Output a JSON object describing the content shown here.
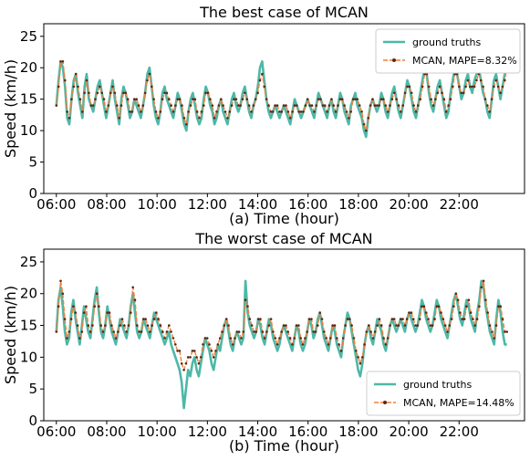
{
  "colors": {
    "ground_truth": "#4db8a7",
    "prediction": "#f07f3c",
    "marker_edge": "#5a2a1a"
  },
  "chart_data": [
    {
      "type": "line",
      "title": "The best case of MCAN",
      "xlabel": "(a) Time (hour)",
      "ylabel": "Speed (km/h)",
      "x_unit": "hour",
      "xlim": [
        5.5,
        24.6
      ],
      "ylim": [
        0,
        27
      ],
      "xticks": [
        "06:00",
        "08:00",
        "10:00",
        "12:00",
        "14:00",
        "16:00",
        "18:00",
        "20:00",
        "22:00"
      ],
      "yticks": [
        "0",
        "5",
        "10",
        "15",
        "20",
        "25"
      ],
      "legend_location": "upper-right",
      "series": [
        {
          "name": "ground truths",
          "values": [
            14,
            18,
            21,
            20,
            17,
            12,
            11,
            15,
            18,
            19,
            16,
            14,
            12,
            17,
            19,
            15,
            14,
            13,
            15,
            17,
            18,
            16,
            14,
            12,
            14,
            16,
            18,
            15,
            13,
            11,
            15,
            17,
            16,
            14,
            12,
            13,
            15,
            14,
            13,
            12,
            14,
            16,
            19,
            20,
            17,
            14,
            12,
            11,
            13,
            16,
            17,
            15,
            14,
            13,
            12,
            14,
            16,
            15,
            13,
            11,
            10,
            13,
            15,
            16,
            14,
            12,
            11,
            12,
            15,
            17,
            16,
            14,
            13,
            11,
            12,
            14,
            15,
            13,
            12,
            11,
            13,
            15,
            16,
            14,
            13,
            14,
            16,
            17,
            15,
            13,
            12,
            14,
            15,
            17,
            20,
            21,
            18,
            15,
            13,
            12,
            13,
            14,
            13,
            12,
            13,
            14,
            13,
            12,
            11,
            13,
            15,
            14,
            13,
            12,
            13,
            14,
            15,
            14,
            13,
            12,
            14,
            16,
            15,
            14,
            13,
            12,
            14,
            15,
            13,
            12,
            14,
            16,
            15,
            13,
            12,
            11,
            14,
            15,
            16,
            14,
            13,
            12,
            10,
            9,
            12,
            14,
            15,
            14,
            13,
            14,
            16,
            15,
            13,
            12,
            14,
            16,
            17,
            15,
            13,
            12,
            14,
            16,
            18,
            17,
            15,
            13,
            12,
            14,
            16,
            18,
            20,
            19,
            16,
            14,
            13,
            15,
            17,
            18,
            16,
            14,
            12,
            13,
            16,
            18,
            20,
            19,
            17,
            15,
            16,
            18,
            19,
            17,
            16,
            18,
            19,
            20,
            18,
            16,
            15,
            13,
            12,
            15,
            18,
            19,
            17,
            15,
            17,
            19,
            20
          ],
          "color": "#4db8a7"
        },
        {
          "name": "MCAN, MAPE=8.32%",
          "values": [
            14,
            17,
            21,
            21,
            18,
            13,
            12,
            15,
            17,
            19,
            17,
            15,
            13,
            16,
            18,
            16,
            14,
            14,
            15,
            16,
            17,
            16,
            15,
            13,
            14,
            16,
            17,
            16,
            14,
            12,
            14,
            16,
            16,
            15,
            13,
            13,
            15,
            15,
            14,
            13,
            14,
            16,
            18,
            19,
            17,
            15,
            13,
            12,
            13,
            15,
            16,
            16,
            15,
            14,
            13,
            14,
            15,
            15,
            14,
            12,
            11,
            13,
            14,
            15,
            15,
            13,
            12,
            13,
            14,
            16,
            16,
            15,
            14,
            12,
            13,
            14,
            15,
            14,
            13,
            12,
            13,
            14,
            15,
            15,
            14,
            14,
            15,
            16,
            15,
            14,
            13,
            14,
            15,
            16,
            18,
            19,
            17,
            15,
            14,
            13,
            13,
            14,
            14,
            13,
            13,
            14,
            14,
            13,
            12,
            13,
            14,
            14,
            13,
            13,
            13,
            14,
            15,
            14,
            14,
            13,
            14,
            15,
            15,
            14,
            14,
            13,
            14,
            15,
            14,
            13,
            14,
            15,
            15,
            14,
            13,
            12,
            13,
            15,
            15,
            15,
            14,
            13,
            11,
            10,
            12,
            14,
            15,
            14,
            14,
            14,
            15,
            15,
            14,
            13,
            14,
            15,
            16,
            15,
            14,
            13,
            14,
            16,
            17,
            17,
            16,
            14,
            13,
            14,
            15,
            17,
            19,
            19,
            17,
            15,
            14,
            15,
            16,
            17,
            16,
            15,
            13,
            14,
            15,
            17,
            19,
            19,
            17,
            16,
            16,
            17,
            18,
            17,
            17,
            17,
            18,
            19,
            18,
            17,
            15,
            14,
            13,
            15,
            17,
            18,
            17,
            16,
            17,
            18,
            20
          ],
          "color": "#f07f3c"
        }
      ]
    },
    {
      "type": "line",
      "title": "The worst case of MCAN",
      "xlabel": "(b) Time (hour)",
      "ylabel": "Speed (km/h)",
      "x_unit": "hour",
      "xlim": [
        5.5,
        24.6
      ],
      "ylim": [
        0,
        27
      ],
      "xticks": [
        "06:00",
        "08:00",
        "10:00",
        "12:00",
        "14:00",
        "16:00",
        "18:00",
        "20:00",
        "22:00"
      ],
      "yticks": [
        "0",
        "5",
        "10",
        "15",
        "20",
        "25"
      ],
      "legend_location": "lower-right",
      "series": [
        {
          "name": "ground truths",
          "values": [
            14,
            19,
            21,
            18,
            14,
            12,
            13,
            17,
            19,
            16,
            14,
            12,
            15,
            18,
            16,
            14,
            13,
            16,
            19,
            21,
            17,
            14,
            13,
            15,
            18,
            16,
            14,
            13,
            12,
            14,
            16,
            15,
            14,
            13,
            15,
            18,
            20,
            17,
            14,
            13,
            14,
            16,
            15,
            14,
            13,
            15,
            17,
            16,
            15,
            14,
            13,
            12,
            13,
            14,
            12,
            11,
            10,
            9,
            8,
            6,
            2,
            5,
            8,
            7,
            9,
            10,
            8,
            7,
            9,
            11,
            13,
            12,
            11,
            9,
            8,
            10,
            12,
            11,
            13,
            15,
            16,
            14,
            12,
            11,
            13,
            14,
            13,
            12,
            13,
            22,
            17,
            15,
            14,
            13,
            14,
            16,
            15,
            13,
            12,
            14,
            16,
            15,
            13,
            12,
            11,
            12,
            14,
            15,
            14,
            13,
            12,
            11,
            13,
            15,
            14,
            12,
            11,
            12,
            14,
            16,
            15,
            13,
            14,
            16,
            17,
            15,
            13,
            12,
            11,
            13,
            15,
            14,
            12,
            11,
            10,
            13,
            15,
            17,
            16,
            14,
            12,
            10,
            8,
            7,
            9,
            12,
            14,
            15,
            13,
            12,
            14,
            16,
            15,
            14,
            12,
            11,
            13,
            15,
            16,
            15,
            14,
            15,
            16,
            15,
            14,
            16,
            17,
            16,
            15,
            14,
            15,
            17,
            19,
            18,
            16,
            15,
            14,
            15,
            17,
            19,
            18,
            16,
            15,
            14,
            13,
            15,
            17,
            19,
            20,
            18,
            16,
            15,
            17,
            19,
            18,
            16,
            15,
            14,
            17,
            19,
            22,
            21,
            18,
            16,
            14,
            13,
            12,
            16,
            19,
            17,
            14,
            12,
            12
          ],
          "color": "#4db8a7"
        },
        {
          "name": "MCAN, MAPE=14.48%",
          "values": [
            14,
            18,
            22,
            20,
            16,
            13,
            14,
            16,
            18,
            17,
            15,
            13,
            14,
            17,
            18,
            15,
            14,
            15,
            18,
            20,
            18,
            15,
            14,
            15,
            17,
            17,
            15,
            14,
            13,
            14,
            15,
            16,
            15,
            14,
            15,
            17,
            21,
            19,
            15,
            14,
            14,
            16,
            16,
            15,
            14,
            15,
            16,
            17,
            16,
            15,
            14,
            13,
            14,
            15,
            14,
            13,
            12,
            11,
            11,
            9,
            8,
            9,
            10,
            10,
            11,
            11,
            10,
            9,
            10,
            12,
            13,
            13,
            12,
            11,
            10,
            11,
            12,
            13,
            14,
            15,
            16,
            15,
            13,
            12,
            13,
            14,
            14,
            13,
            14,
            19,
            18,
            16,
            15,
            14,
            14,
            16,
            16,
            14,
            13,
            14,
            15,
            16,
            14,
            13,
            12,
            13,
            14,
            15,
            15,
            14,
            13,
            12,
            13,
            15,
            15,
            13,
            12,
            13,
            14,
            16,
            16,
            14,
            14,
            15,
            17,
            16,
            14,
            13,
            12,
            13,
            15,
            15,
            13,
            12,
            11,
            13,
            15,
            16,
            16,
            15,
            13,
            11,
            10,
            9,
            10,
            12,
            14,
            15,
            14,
            13,
            14,
            15,
            16,
            15,
            13,
            12,
            13,
            15,
            16,
            16,
            15,
            15,
            16,
            16,
            15,
            16,
            17,
            17,
            16,
            15,
            15,
            16,
            18,
            18,
            17,
            16,
            15,
            15,
            16,
            18,
            18,
            17,
            16,
            15,
            14,
            15,
            16,
            18,
            20,
            19,
            17,
            16,
            16,
            18,
            19,
            17,
            16,
            15,
            16,
            18,
            21,
            22,
            19,
            17,
            15,
            14,
            13,
            15,
            18,
            18,
            16,
            14,
            14
          ],
          "color": "#f07f3c"
        }
      ]
    }
  ]
}
